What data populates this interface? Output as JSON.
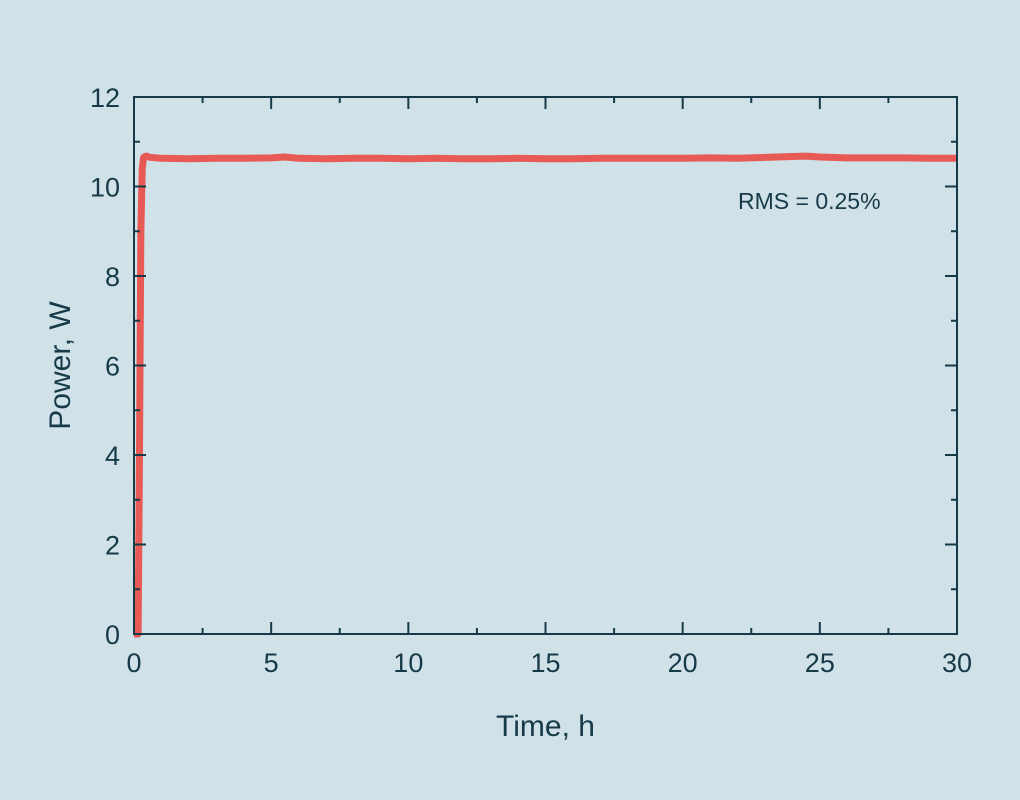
{
  "chart_data": {
    "type": "line",
    "title": "",
    "xlabel": "Time, h",
    "ylabel": "Power, W",
    "xlim": [
      0,
      30
    ],
    "ylim": [
      0,
      12
    ],
    "xticks": [
      0,
      5,
      10,
      15,
      20,
      25,
      30
    ],
    "yticks": [
      0,
      2,
      4,
      6,
      8,
      10,
      12
    ],
    "grid": false,
    "annotation": "RMS = 0.25%",
    "colors": {
      "background": "#d0e1e8",
      "axis": "#163a48",
      "series": "#e85a55"
    },
    "series": [
      {
        "x": [
          0,
          0.15,
          0.2,
          0.25,
          0.3,
          0.35,
          0.45,
          0.6,
          1,
          2,
          3,
          4,
          5,
          5.5,
          6,
          7,
          8,
          9,
          10,
          11,
          12,
          13,
          14,
          15,
          16,
          17,
          18,
          19,
          20,
          21,
          22,
          23,
          24,
          24.5,
          25,
          26,
          27,
          28,
          29,
          30
        ],
        "y": [
          0,
          0,
          4.0,
          9.0,
          10.4,
          10.65,
          10.68,
          10.65,
          10.63,
          10.62,
          10.63,
          10.63,
          10.64,
          10.66,
          10.63,
          10.62,
          10.63,
          10.63,
          10.62,
          10.63,
          10.62,
          10.62,
          10.63,
          10.62,
          10.62,
          10.63,
          10.63,
          10.63,
          10.63,
          10.64,
          10.63,
          10.65,
          10.67,
          10.68,
          10.66,
          10.64,
          10.64,
          10.64,
          10.63,
          10.63
        ]
      }
    ]
  }
}
